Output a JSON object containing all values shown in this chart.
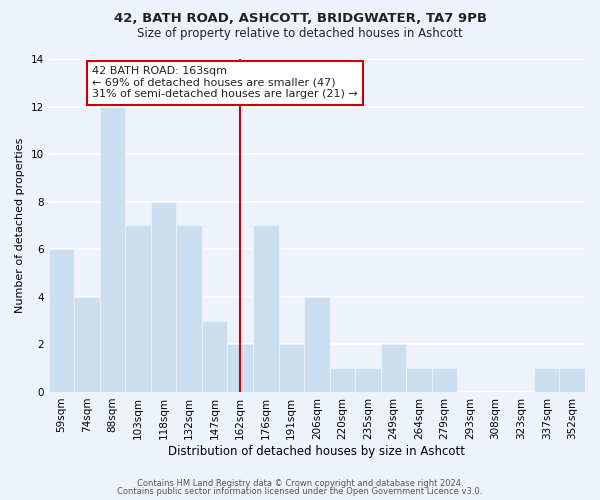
{
  "title1": "42, BATH ROAD, ASHCOTT, BRIDGWATER, TA7 9PB",
  "title2": "Size of property relative to detached houses in Ashcott",
  "xlabel": "Distribution of detached houses by size in Ashcott",
  "ylabel": "Number of detached properties",
  "footer1": "Contains HM Land Registry data © Crown copyright and database right 2024.",
  "footer2": "Contains public sector information licensed under the Open Government Licence v3.0.",
  "annotation_line1": "42 BATH ROAD: 163sqm",
  "annotation_line2": "← 69% of detached houses are smaller (47)",
  "annotation_line3": "31% of semi-detached houses are larger (21) →",
  "bar_color": "#ccdff0",
  "bar_edge_color": "#b8d0e8",
  "marker_color": "#cc0000",
  "categories": [
    "59sqm",
    "74sqm",
    "88sqm",
    "103sqm",
    "118sqm",
    "132sqm",
    "147sqm",
    "162sqm",
    "176sqm",
    "191sqm",
    "206sqm",
    "220sqm",
    "235sqm",
    "249sqm",
    "264sqm",
    "279sqm",
    "293sqm",
    "308sqm",
    "323sqm",
    "337sqm",
    "352sqm"
  ],
  "values": [
    6,
    4,
    12,
    7,
    8,
    7,
    3,
    2,
    7,
    2,
    4,
    1,
    1,
    2,
    1,
    1,
    0,
    0,
    0,
    1,
    1
  ],
  "marker_bin_index": 7,
  "ylim": [
    0,
    14
  ],
  "yticks": [
    0,
    2,
    4,
    6,
    8,
    10,
    12,
    14
  ],
  "background_color": "#eef3fb",
  "grid_color": "#ffffff",
  "title1_fontsize": 9.5,
  "title2_fontsize": 8.5,
  "xlabel_fontsize": 8.5,
  "ylabel_fontsize": 8.0,
  "tick_fontsize": 7.5,
  "footer_fontsize": 6.0,
  "ann_fontsize": 8.0
}
